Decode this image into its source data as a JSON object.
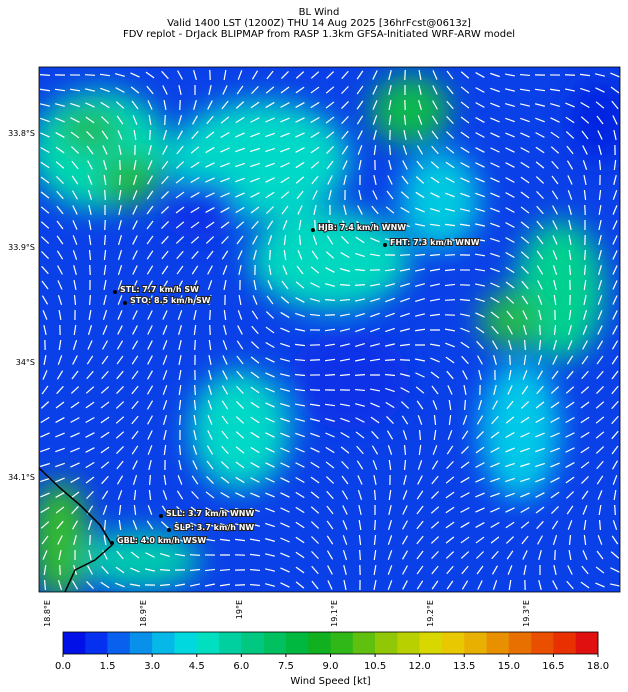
{
  "header": {
    "title": "BL Wind",
    "subtitle": "Valid 1400 LST (1200Z) THU 14 Aug 2025 [36hrFcst@0613z]",
    "caption": "FDV replot - DrJack BLIPMAP from RASP 1.3km GFSA-Initiated WRF-ARW model"
  },
  "map": {
    "lat_labels": [
      "33.8°S",
      "33.9°S",
      "34°S",
      "34.1°S"
    ],
    "lon_labels": [
      "18.8°E",
      "18.9°E",
      "19°E",
      "19.1°E",
      "19.2°E",
      "19.3°E"
    ],
    "stations": [
      "HJB: 7.4 km/h WNW",
      "FHT: 7.3 km/h WNW",
      "STL: 7.7 km/h SW",
      "STO: 8.5 km/h SW",
      "SLL: 3.7 km/h WNW",
      "SLP: 3.7 km/h NW",
      "GBL: 4.0 km/h WSW"
    ]
  },
  "colorbar": {
    "label": "Wind Speed [kt]",
    "lim": [
      0,
      18
    ],
    "ticks": [
      {
        "value": 0,
        "label": "0.0"
      },
      {
        "value": 1.5,
        "label": "1.5"
      },
      {
        "value": 3,
        "label": "3.0"
      },
      {
        "value": 4.5,
        "label": "4.5"
      },
      {
        "value": 6,
        "label": "6.0"
      },
      {
        "value": 7.5,
        "label": "7.5"
      },
      {
        "value": 9,
        "label": "9.0"
      },
      {
        "value": 10.5,
        "label": "10.5"
      },
      {
        "value": 12,
        "label": "12.0"
      },
      {
        "value": 13.5,
        "label": "13.5"
      },
      {
        "value": 15,
        "label": "15.0"
      },
      {
        "value": 16.5,
        "label": "16.5"
      },
      {
        "value": 18,
        "label": "18.0"
      }
    ],
    "colors": [
      "#0010e6",
      "#0530f0",
      "#0a60ee",
      "#0890ea",
      "#05b8e8",
      "#00d8e0",
      "#00e0c0",
      "#00d0a0",
      "#00c880",
      "#00c060",
      "#00b840",
      "#10b020",
      "#30b818",
      "#60c010",
      "#90c808",
      "#b8d000",
      "#d8d800",
      "#e8c800",
      "#e8b000",
      "#e89000",
      "#e87000",
      "#e85000",
      "#e83000",
      "#e01010"
    ]
  }
}
